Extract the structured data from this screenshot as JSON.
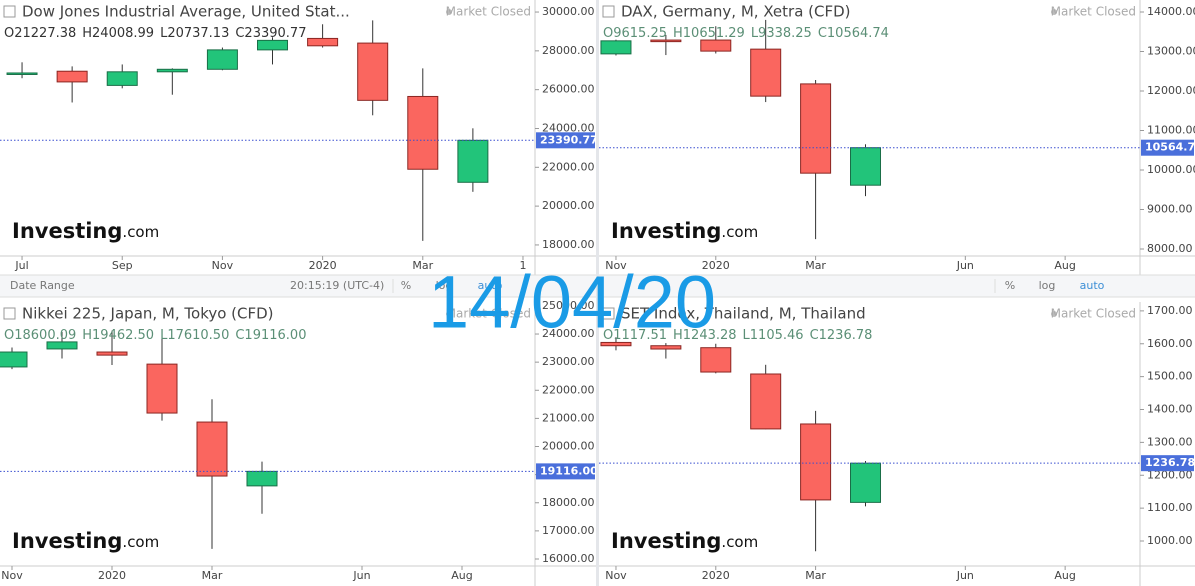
{
  "date_overlay": "14/04/20",
  "status": "Market Closed",
  "watermark": [
    "Investing",
    ".com"
  ],
  "toolbar": {
    "date_range": "Date Range",
    "time": "20:15:19 (UTC-4)",
    "percent": "%",
    "log": "log",
    "auto": "auto"
  },
  "chart_data": [
    {
      "type": "candlestick",
      "title": "Dow Jones Industrial Average, United Stat...",
      "ohlc_labels": [
        "O21227.38",
        "H24008.99",
        "L20737.13",
        "C23390.77"
      ],
      "x": [
        0,
        1,
        2,
        3,
        4,
        5,
        6,
        7,
        8,
        9
      ],
      "open": [
        26800,
        26950,
        26220,
        26920,
        27050,
        28050,
        28640,
        28400,
        25650,
        21227.38
      ],
      "high": [
        27410,
        27200,
        27300,
        27100,
        28170,
        28700,
        29370,
        29570,
        27100,
        24008.99
      ],
      "low": [
        26590,
        25340,
        26070,
        25740,
        27000,
        27300,
        28170,
        24680,
        18210,
        20737.13
      ],
      "close": [
        26860,
        26400,
        26920,
        27050,
        28050,
        28540,
        28260,
        25450,
        21900,
        23390.77
      ],
      "up_color": "#22c47a",
      "down_color": "#fa665f",
      "last_price": {
        "value": 23390.77,
        "label": "23390.77"
      },
      "xlim": [
        -0.44,
        10.24
      ],
      "xticks": [
        {
          "value": 0,
          "label": "Jul"
        },
        {
          "value": 2,
          "label": "Sep"
        },
        {
          "value": 4,
          "label": "Nov"
        },
        {
          "value": 6,
          "label": "2020"
        },
        {
          "value": 8,
          "label": "Mar"
        },
        {
          "value": 10,
          "label": "1"
        }
      ],
      "ylim": [
        17430,
        30620
      ],
      "yticks": [
        {
          "value": 18000,
          "label": "18000.00"
        },
        {
          "value": 20000,
          "label": "20000.00"
        },
        {
          "value": 22000,
          "label": "22000.00"
        },
        {
          "value": 24000,
          "label": "24000.00"
        },
        {
          "value": 26000,
          "label": "26000.00"
        },
        {
          "value": 28000,
          "label": "28000.00"
        },
        {
          "value": 30000,
          "label": "30000.00"
        }
      ]
    },
    {
      "type": "candlestick",
      "title": "DAX, Germany, M, Xetra (CFD)",
      "ohlc_labels": [
        "O9615.25",
        "H10651.29",
        "L9338.25",
        "C10564.74"
      ],
      "x": [
        0,
        1,
        2,
        3,
        4,
        5
      ],
      "open": [
        12940,
        13290,
        13290,
        13060,
        12180,
        9615.25
      ],
      "high": [
        13300,
        13420,
        13640,
        13800,
        12280,
        10651.29
      ],
      "low": [
        12900,
        12910,
        12950,
        11720,
        8250,
        9338.25
      ],
      "close": [
        13270,
        13250,
        13010,
        11870,
        9920,
        10564.74
      ],
      "up_color": "#22c47a",
      "down_color": "#fa665f",
      "last_price": {
        "value": 10564.74,
        "label": "10564.74"
      },
      "xlim": [
        -0.34,
        10.5
      ],
      "xticks": [
        {
          "value": 0,
          "label": "Nov"
        },
        {
          "value": 2,
          "label": "2020"
        },
        {
          "value": 4,
          "label": "Mar"
        },
        {
          "value": 7,
          "label": "Jun"
        },
        {
          "value": 9,
          "label": "Aug"
        }
      ],
      "ylim": [
        7823,
        14304
      ],
      "yticks": [
        {
          "value": 8000,
          "label": "8000.00"
        },
        {
          "value": 9000,
          "label": "9000.00"
        },
        {
          "value": 10000,
          "label": "10000.00"
        },
        {
          "value": 11000,
          "label": "11000.00"
        },
        {
          "value": 12000,
          "label": "12000.00"
        },
        {
          "value": 13000,
          "label": "13000.00"
        },
        {
          "value": 14000,
          "label": "14000.00"
        }
      ]
    },
    {
      "type": "candlestick",
      "title": "Nikkei 225, Japan, M, Tokyo (CFD)",
      "ohlc_labels": [
        "O18600.09",
        "H19462.50",
        "L17610.50",
        "C19116.00"
      ],
      "x": [
        0,
        1,
        2,
        3,
        4,
        5
      ],
      "open": [
        22830,
        23470,
        23360,
        22930,
        20870,
        18600.09
      ],
      "high": [
        23520,
        24070,
        24120,
        23990,
        21680,
        19462.5
      ],
      "low": [
        22750,
        23130,
        22900,
        20920,
        16360,
        17610.5
      ],
      "close": [
        23360,
        23720,
        23250,
        21190,
        18950,
        19116.0
      ],
      "up_color": "#22c47a",
      "down_color": "#fa665f",
      "last_price": {
        "value": 19116,
        "label": "19116.00"
      },
      "xlim": [
        -0.24,
        10.46
      ],
      "xticks": [
        {
          "value": 0,
          "label": "Nov"
        },
        {
          "value": 2,
          "label": "2020"
        },
        {
          "value": 4,
          "label": "Mar"
        },
        {
          "value": 7,
          "label": "Jun"
        },
        {
          "value": 9,
          "label": "Aug"
        }
      ],
      "ylim": [
        15751,
        25139
      ],
      "yticks": [
        {
          "value": 16000,
          "label": "16000.00"
        },
        {
          "value": 17000,
          "label": "17000.00"
        },
        {
          "value": 18000,
          "label": "18000.00"
        },
        {
          "value": 19000,
          "label": "19000.00"
        },
        {
          "value": 20000,
          "label": "20000.00"
        },
        {
          "value": 21000,
          "label": "21000.00"
        },
        {
          "value": 22000,
          "label": "22000.00"
        },
        {
          "value": 23000,
          "label": "23000.00"
        },
        {
          "value": 24000,
          "label": "24000.00"
        },
        {
          "value": 25000,
          "label": "25000.00"
        }
      ]
    },
    {
      "type": "candlestick",
      "title": "SET Index, Thailand, M, Thailand",
      "ohlc_labels": [
        "O1117.51",
        "H1243.28",
        "L1105.46",
        "C1236.78"
      ],
      "x": [
        0,
        1,
        2,
        3,
        4,
        5
      ],
      "open": [
        1604,
        1594,
        1588,
        1508,
        1356,
        1117.51
      ],
      "high": [
        1620,
        1602,
        1600,
        1536,
        1396,
        1243.28
      ],
      "low": [
        1580,
        1555,
        1510,
        1340,
        969,
        1105.46
      ],
      "close": [
        1594,
        1584,
        1514,
        1341,
        1125,
        1236.78
      ],
      "up_color": "#22c47a",
      "down_color": "#fa665f",
      "last_price": {
        "value": 1236.78,
        "label": "1236.78"
      },
      "xlim": [
        -0.34,
        10.5
      ],
      "xticks": [
        {
          "value": 0,
          "label": "Nov"
        },
        {
          "value": 2,
          "label": "2020"
        },
        {
          "value": 4,
          "label": "Mar"
        },
        {
          "value": 7,
          "label": "Jun"
        },
        {
          "value": 9,
          "label": "Aug"
        }
      ],
      "ylim": [
        924,
        1727
      ],
      "yticks": [
        {
          "value": 1000,
          "label": "1000.00"
        },
        {
          "value": 1100,
          "label": "1100.00"
        },
        {
          "value": 1200,
          "label": "1200.00"
        },
        {
          "value": 1300,
          "label": "1300.00"
        },
        {
          "value": 1400,
          "label": "1400.00"
        },
        {
          "value": 1500,
          "label": "1500.00"
        },
        {
          "value": 1600,
          "label": "1600.00"
        },
        {
          "value": 1700,
          "label": "1700.00"
        }
      ]
    }
  ]
}
